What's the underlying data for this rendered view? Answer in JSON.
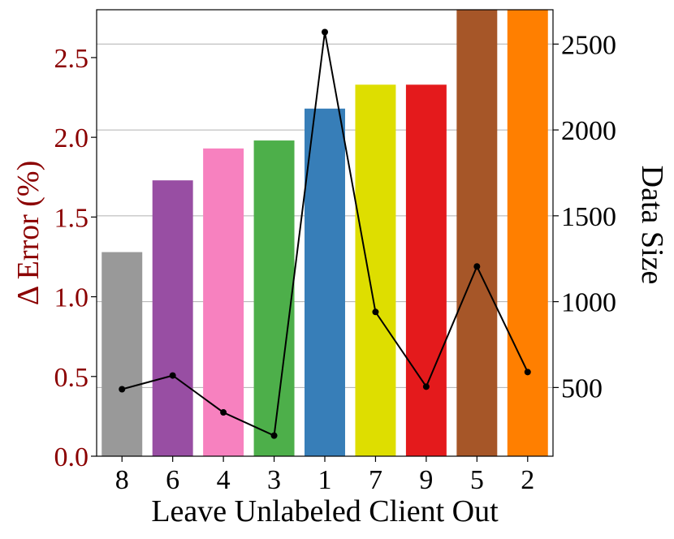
{
  "chart_data": {
    "type": "bar",
    "title": "",
    "xlabel": "Leave Unlabeled Client Out",
    "ylabel_left": "Δ Error (%)",
    "ylabel_right": "Data Size",
    "categories": [
      "8",
      "6",
      "4",
      "3",
      "1",
      "7",
      "9",
      "5",
      "2"
    ],
    "bar_series": {
      "axis": "left",
      "values": [
        1.28,
        1.73,
        1.93,
        1.98,
        2.18,
        2.33,
        2.33,
        2.8,
        2.8
      ],
      "colors": [
        "#999999",
        "#984ea3",
        "#f781bf",
        "#4daf4a",
        "#377eb8",
        "#dede00",
        "#e41a1c",
        "#a65628",
        "#ff7f00"
      ]
    },
    "line_series": {
      "axis": "right",
      "values": [
        490,
        570,
        355,
        220,
        2570,
        940,
        505,
        1205,
        590
      ],
      "color": "#000000",
      "marker": "circle"
    },
    "ylim_left": [
      0,
      2.8
    ],
    "ylim_right": [
      100,
      2700
    ],
    "yticks_left": [
      "0.0",
      "0.5",
      "1.0",
      "1.5",
      "2.0",
      "2.5"
    ],
    "yticks_right": [
      "500",
      "1000",
      "1500",
      "2000",
      "2500"
    ],
    "left_axis_color": "#8b0000",
    "grid": true,
    "grid_axis": "right-y"
  }
}
